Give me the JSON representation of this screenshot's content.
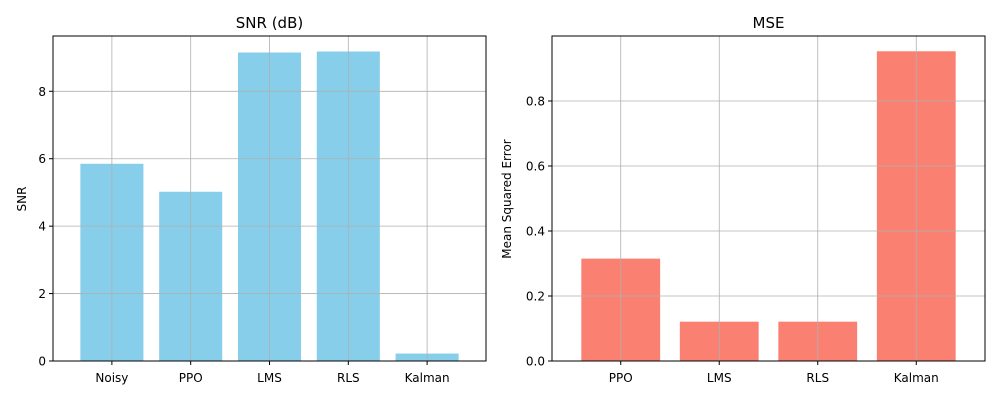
{
  "chart_data": [
    {
      "type": "bar",
      "title": "SNR (dB)",
      "xlabel": "",
      "ylabel": "SNR",
      "categories": [
        "Noisy",
        "PPO",
        "LMS",
        "RLS",
        "Kalman"
      ],
      "values": [
        5.85,
        5.02,
        9.15,
        9.18,
        0.22
      ],
      "ylim": [
        0,
        9.64
      ],
      "yticks": [
        0,
        2,
        4,
        6,
        8
      ],
      "ytick_labels": [
        "0",
        "2",
        "4",
        "6",
        "8"
      ],
      "grid": true,
      "color": "#87ceeb"
    },
    {
      "type": "bar",
      "title": "MSE",
      "xlabel": "",
      "ylabel": "Mean Squared Error",
      "categories": [
        "PPO",
        "LMS",
        "RLS",
        "Kalman"
      ],
      "values": [
        0.315,
        0.121,
        0.121,
        0.953
      ],
      "ylim": [
        0,
        1.0
      ],
      "yticks": [
        0,
        0.2,
        0.4,
        0.6,
        0.8
      ],
      "ytick_labels": [
        "0.0",
        "0.2",
        "0.4",
        "0.6",
        "0.8"
      ],
      "grid": true,
      "color": "#fa8072"
    }
  ]
}
